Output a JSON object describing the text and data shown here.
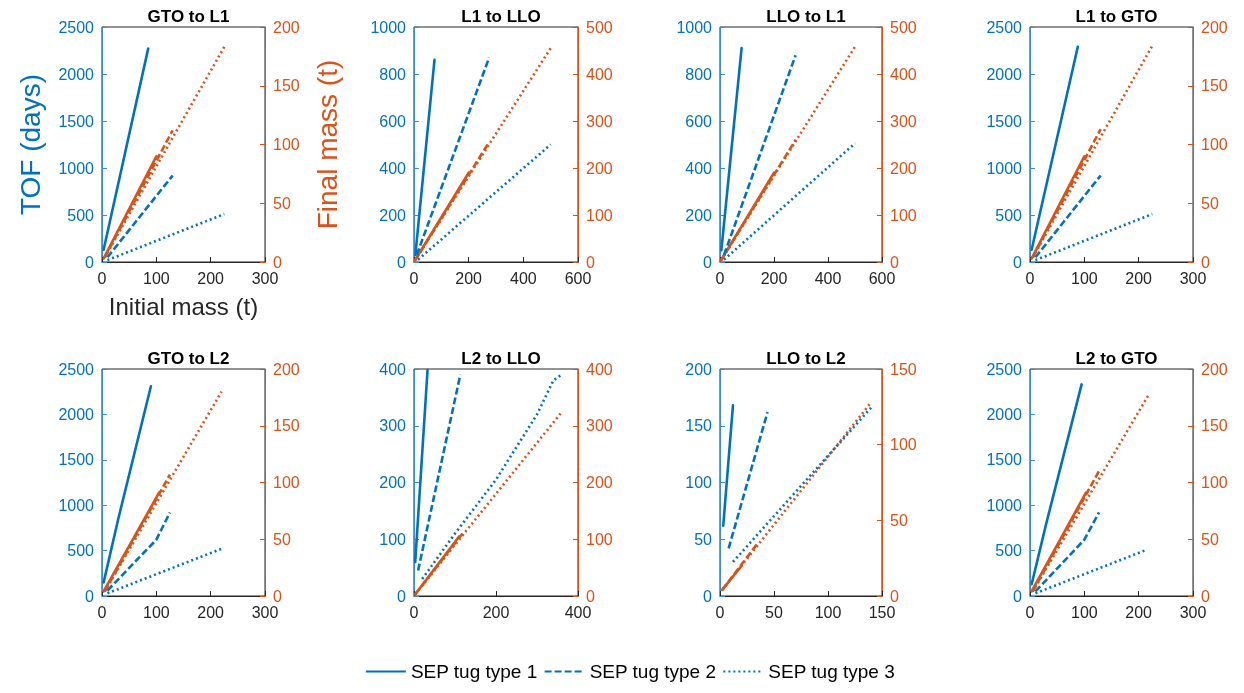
{
  "chart_data": [
    {
      "type": "line",
      "title": "GTO to L1",
      "xlabel": "Initial mass (t)",
      "ylabel": "TOF (days)",
      "y2label": "Final mass (t)",
      "xlim": [
        0,
        300
      ],
      "xticks": [
        0,
        100,
        200,
        300
      ],
      "ylim": [
        0,
        2500
      ],
      "yticks": [
        0,
        500,
        1000,
        1500,
        2000,
        2500
      ],
      "y2lim": [
        0,
        200
      ],
      "y2ticks": [
        0,
        50,
        100,
        150,
        200
      ],
      "grid": false,
      "marker": "none",
      "legend": "bottom",
      "series": [
        {
          "color": "#d95319",
          "line_style": "solid",
          "axis": "y2",
          "x": [
            3,
            100
          ],
          "values": [
            3,
            90
          ]
        },
        {
          "color": "#d95319",
          "line_style": "dashed",
          "axis": "y2",
          "x": [
            5,
            130
          ],
          "values": [
            4,
            112
          ]
        },
        {
          "color": "#d95319",
          "line_style": "dotted",
          "axis": "y2",
          "x": [
            5,
            225
          ],
          "values": [
            4,
            183
          ]
        },
        {
          "name": "SEP tug type 1",
          "color": "#0072bd",
          "line_style": "solid",
          "x": [
            3,
            85
          ],
          "values": [
            130,
            2270
          ]
        },
        {
          "name": "SEP tug type 2",
          "color": "#0072bd",
          "line_style": "dashed",
          "x": [
            10,
            130
          ],
          "values": [
            50,
            920
          ]
        },
        {
          "name": "SEP tug type 3",
          "color": "#0072bd",
          "line_style": "dotted",
          "x": [
            10,
            225
          ],
          "values": [
            20,
            510
          ]
        }
      ]
    },
    {
      "type": "line",
      "title": "L1 to LLO",
      "xlim": [
        0,
        600
      ],
      "xticks": [
        0,
        200,
        400,
        600
      ],
      "ylim": [
        0,
        1000
      ],
      "yticks": [
        0,
        200,
        400,
        600,
        800,
        1000
      ],
      "y2lim": [
        0,
        500
      ],
      "y2ticks": [
        0,
        100,
        200,
        300,
        400,
        500
      ],
      "grid": false,
      "marker": "none",
      "series": [
        {
          "color": "#d95319",
          "line_style": "solid",
          "axis": "y2",
          "x": [
            3,
            200
          ],
          "values": [
            3,
            190
          ]
        },
        {
          "color": "#d95319",
          "line_style": "dashed",
          "axis": "y2",
          "x": [
            3,
            275
          ],
          "values": [
            3,
            255
          ]
        },
        {
          "color": "#d95319",
          "line_style": "dotted",
          "axis": "y2",
          "x": [
            3,
            500
          ],
          "values": [
            3,
            455
          ]
        },
        {
          "color": "#0072bd",
          "line_style": "solid",
          "x": [
            5,
            75
          ],
          "values": [
            30,
            860
          ]
        },
        {
          "color": "#0072bd",
          "line_style": "dashed",
          "x": [
            10,
            275
          ],
          "values": [
            30,
            870
          ]
        },
        {
          "color": "#0072bd",
          "line_style": "dotted",
          "x": [
            15,
            500
          ],
          "values": [
            10,
            500
          ]
        }
      ]
    },
    {
      "type": "line",
      "title": "LLO to L1",
      "xlim": [
        0,
        600
      ],
      "xticks": [
        0,
        200,
        400,
        600
      ],
      "ylim": [
        0,
        1000
      ],
      "yticks": [
        0,
        200,
        400,
        600,
        800,
        1000
      ],
      "y2lim": [
        0,
        500
      ],
      "y2ticks": [
        0,
        100,
        200,
        300,
        400,
        500
      ],
      "grid": false,
      "marker": "none",
      "series": [
        {
          "color": "#d95319",
          "line_style": "solid",
          "axis": "y2",
          "x": [
            3,
            200
          ],
          "values": [
            3,
            190
          ]
        },
        {
          "color": "#d95319",
          "line_style": "dashed",
          "axis": "y2",
          "x": [
            3,
            280
          ],
          "values": [
            3,
            260
          ]
        },
        {
          "color": "#d95319",
          "line_style": "dotted",
          "axis": "y2",
          "x": [
            3,
            500
          ],
          "values": [
            3,
            458
          ]
        },
        {
          "color": "#0072bd",
          "line_style": "solid",
          "x": [
            5,
            80
          ],
          "values": [
            50,
            910
          ]
        },
        {
          "color": "#0072bd",
          "line_style": "dashed",
          "x": [
            15,
            280
          ],
          "values": [
            30,
            880
          ]
        },
        {
          "color": "#0072bd",
          "line_style": "dotted",
          "x": [
            15,
            500
          ],
          "values": [
            10,
            505
          ]
        }
      ]
    },
    {
      "type": "line",
      "title": "L1 to GTO",
      "xlim": [
        0,
        300
      ],
      "xticks": [
        0,
        100,
        200,
        300
      ],
      "ylim": [
        0,
        2500
      ],
      "yticks": [
        0,
        500,
        1000,
        1500,
        2000,
        2500
      ],
      "y2lim": [
        0,
        200
      ],
      "y2ticks": [
        0,
        50,
        100,
        150,
        200
      ],
      "grid": false,
      "marker": "none",
      "series": [
        {
          "color": "#d95319",
          "line_style": "solid",
          "axis": "y2",
          "x": [
            3,
            100
          ],
          "values": [
            3,
            90
          ]
        },
        {
          "color": "#d95319",
          "line_style": "dashed",
          "axis": "y2",
          "x": [
            5,
            130
          ],
          "values": [
            4,
            113
          ]
        },
        {
          "color": "#d95319",
          "line_style": "dotted",
          "axis": "y2",
          "x": [
            5,
            225
          ],
          "values": [
            4,
            184
          ]
        },
        {
          "color": "#0072bd",
          "line_style": "solid",
          "x": [
            3,
            88
          ],
          "values": [
            130,
            2290
          ]
        },
        {
          "color": "#0072bd",
          "line_style": "dashed",
          "x": [
            10,
            130
          ],
          "values": [
            50,
            920
          ]
        },
        {
          "color": "#0072bd",
          "line_style": "dotted",
          "x": [
            10,
            225
          ],
          "values": [
            20,
            510
          ]
        }
      ]
    },
    {
      "type": "line",
      "title": "GTO to L2",
      "xlim": [
        0,
        300
      ],
      "xticks": [
        0,
        100,
        200,
        300
      ],
      "ylim": [
        0,
        2500
      ],
      "yticks": [
        0,
        500,
        1000,
        1500,
        2000,
        2500
      ],
      "y2lim": [
        0,
        200
      ],
      "y2ticks": [
        0,
        50,
        100,
        150,
        200
      ],
      "grid": false,
      "marker": "none",
      "series": [
        {
          "color": "#d95319",
          "line_style": "solid",
          "axis": "y2",
          "x": [
            3,
            105
          ],
          "values": [
            4,
            91
          ]
        },
        {
          "color": "#d95319",
          "line_style": "dashed",
          "axis": "y2",
          "x": [
            5,
            125
          ],
          "values": [
            4,
            107
          ]
        },
        {
          "color": "#d95319",
          "line_style": "dotted",
          "axis": "y2",
          "x": [
            5,
            220
          ],
          "values": [
            4,
            180
          ]
        },
        {
          "color": "#0072bd",
          "line_style": "solid",
          "x": [
            3,
            30,
            90
          ],
          "values": [
            150,
            850,
            2310
          ]
        },
        {
          "color": "#0072bd",
          "line_style": "dashed",
          "x": [
            10,
            100,
            125
          ],
          "values": [
            60,
            620,
            920
          ]
        },
        {
          "color": "#0072bd",
          "line_style": "dotted",
          "x": [
            10,
            220
          ],
          "values": [
            30,
            520
          ]
        }
      ]
    },
    {
      "type": "line",
      "title": "L2 to LLO",
      "xlim": [
        0,
        400
      ],
      "xticks": [
        0,
        200,
        400
      ],
      "ylim": [
        0,
        400
      ],
      "yticks": [
        0,
        100,
        200,
        300,
        400
      ],
      "y2lim": [
        0,
        400
      ],
      "y2ticks": [
        0,
        100,
        200,
        300,
        400
      ],
      "grid": false,
      "marker": "none",
      "series": [
        {
          "color": "#d95319",
          "line_style": "solid",
          "axis": "y2",
          "x": [
            3,
            110
          ],
          "values": [
            3,
            105
          ]
        },
        {
          "color": "#d95319",
          "line_style": "dashed",
          "axis": "y2",
          "x": [
            3,
            120
          ],
          "values": [
            3,
            112
          ]
        },
        {
          "color": "#d95319",
          "line_style": "dotted",
          "axis": "y2",
          "x": [
            3,
            358
          ],
          "values": [
            3,
            322
          ]
        },
        {
          "color": "#0072bd",
          "line_style": "solid",
          "x": [
            3,
            33
          ],
          "values": [
            60,
            398
          ]
        },
        {
          "color": "#0072bd",
          "line_style": "dashed",
          "x": [
            10,
            113
          ],
          "values": [
            45,
            390
          ]
        },
        {
          "color": "#0072bd",
          "line_style": "dotted",
          "x": [
            20,
            100,
            200,
            300,
            340,
            360
          ],
          "values": [
            30,
            110,
            205,
            320,
            380,
            390
          ]
        }
      ]
    },
    {
      "type": "line",
      "title": "LLO to L2",
      "xlim": [
        0,
        150
      ],
      "xticks": [
        0,
        50,
        100,
        150
      ],
      "ylim": [
        0,
        200
      ],
      "yticks": [
        0,
        50,
        100,
        150,
        200
      ],
      "y2lim": [
        0,
        150
      ],
      "y2ticks": [
        0,
        50,
        100,
        150
      ],
      "grid": false,
      "marker": "none",
      "series": [
        {
          "color": "#d95319",
          "line_style": "solid",
          "axis": "y2",
          "x": [
            2,
            20
          ],
          "values": [
            4,
            20
          ]
        },
        {
          "color": "#d95319",
          "line_style": "dashed",
          "axis": "y2",
          "x": [
            2,
            35
          ],
          "values": [
            4,
            35
          ]
        },
        {
          "color": "#d95319",
          "line_style": "dotted",
          "axis": "y2",
          "x": [
            2,
            140
          ],
          "values": [
            4,
            128
          ]
        },
        {
          "color": "#0072bd",
          "line_style": "solid",
          "x": [
            3,
            12
          ],
          "values": [
            62,
            168
          ]
        },
        {
          "color": "#0072bd",
          "line_style": "dashed",
          "x": [
            8,
            44
          ],
          "values": [
            42,
            162
          ]
        },
        {
          "color": "#0072bd",
          "line_style": "dotted",
          "x": [
            12,
            140
          ],
          "values": [
            30,
            166
          ]
        }
      ]
    },
    {
      "type": "line",
      "title": "L2 to GTO",
      "xlim": [
        0,
        300
      ],
      "xticks": [
        0,
        100,
        200,
        300
      ],
      "ylim": [
        0,
        2500
      ],
      "yticks": [
        0,
        500,
        1000,
        1500,
        2000,
        2500
      ],
      "y2lim": [
        0,
        200
      ],
      "y2ticks": [
        0,
        50,
        100,
        150,
        200
      ],
      "grid": false,
      "marker": "none",
      "series": [
        {
          "color": "#d95319",
          "line_style": "solid",
          "axis": "y2",
          "x": [
            3,
            103
          ],
          "values": [
            4,
            91
          ]
        },
        {
          "color": "#d95319",
          "line_style": "dashed",
          "axis": "y2",
          "x": [
            5,
            127
          ],
          "values": [
            4,
            110
          ]
        },
        {
          "color": "#d95319",
          "line_style": "dotted",
          "axis": "y2",
          "x": [
            5,
            218
          ],
          "values": [
            4,
            177
          ]
        },
        {
          "color": "#0072bd",
          "line_style": "solid",
          "x": [
            3,
            30,
            95
          ],
          "values": [
            130,
            800,
            2330
          ]
        },
        {
          "color": "#0072bd",
          "line_style": "dashed",
          "x": [
            10,
            100,
            127
          ],
          "values": [
            50,
            620,
            920
          ]
        },
        {
          "color": "#0072bd",
          "line_style": "dotted",
          "x": [
            10,
            215
          ],
          "values": [
            30,
            510
          ]
        }
      ]
    }
  ]
}
